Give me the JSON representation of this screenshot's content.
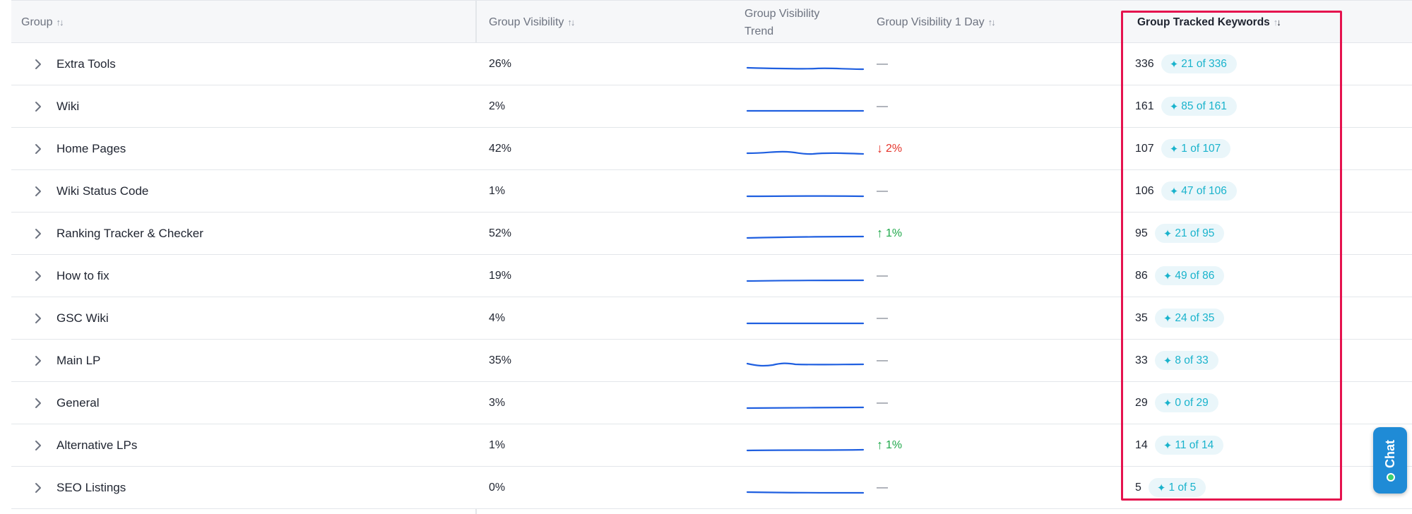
{
  "headers": {
    "group": "Group",
    "group_visibility": "Group Visibility",
    "group_visibility_trend": "Group Visibility Trend",
    "group_visibility_1day": "Group Visibility 1 Day",
    "group_tracked_keywords": "Group Tracked Keywords",
    "sort_icon": "↑↓",
    "sort_active_icon": "↓"
  },
  "rows": [
    {
      "name": "Extra Tools",
      "visibility": "26%",
      "day": "—",
      "day_dir": "none",
      "keywords": "336",
      "badge": "21 of 336"
    },
    {
      "name": "Wiki",
      "visibility": "2%",
      "day": "—",
      "day_dir": "none",
      "keywords": "161",
      "badge": "85 of 161"
    },
    {
      "name": "Home Pages",
      "visibility": "42%",
      "day": "2%",
      "day_dir": "down",
      "keywords": "107",
      "badge": "1 of 107"
    },
    {
      "name": "Wiki Status Code",
      "visibility": "1%",
      "day": "—",
      "day_dir": "none",
      "keywords": "106",
      "badge": "47 of 106"
    },
    {
      "name": "Ranking Tracker & Checker",
      "visibility": "52%",
      "day": "1%",
      "day_dir": "up",
      "keywords": "95",
      "badge": "21 of 95"
    },
    {
      "name": "How to fix",
      "visibility": "19%",
      "day": "—",
      "day_dir": "none",
      "keywords": "86",
      "badge": "49 of 86"
    },
    {
      "name": "GSC Wiki",
      "visibility": "4%",
      "day": "—",
      "day_dir": "none",
      "keywords": "35",
      "badge": "24 of 35"
    },
    {
      "name": "Main LP",
      "visibility": "35%",
      "day": "—",
      "day_dir": "none",
      "keywords": "33",
      "badge": "8 of 33"
    },
    {
      "name": "General",
      "visibility": "3%",
      "day": "—",
      "day_dir": "none",
      "keywords": "29",
      "badge": "0 of 29"
    },
    {
      "name": "Alternative LPs",
      "visibility": "1%",
      "day": "1%",
      "day_dir": "up",
      "keywords": "14",
      "badge": "11 of 14"
    },
    {
      "name": "SEO Listings",
      "visibility": "0%",
      "day": "—",
      "day_dir": "none",
      "keywords": "5",
      "badge": "1 of 5"
    }
  ],
  "chat": {
    "label": "Chat"
  },
  "colors": {
    "trend_line": "#1f5fe0",
    "down": "#e5332a",
    "up": "#1fa84a",
    "badge_text": "#19b3cc",
    "highlight": "#e5124e",
    "chat_bg": "#1f8bd6"
  },
  "icons": {
    "expand": "chevron-right-icon",
    "badge": "sparkle-icon",
    "down": "arrow-down-icon",
    "up": "arrow-up-icon"
  }
}
